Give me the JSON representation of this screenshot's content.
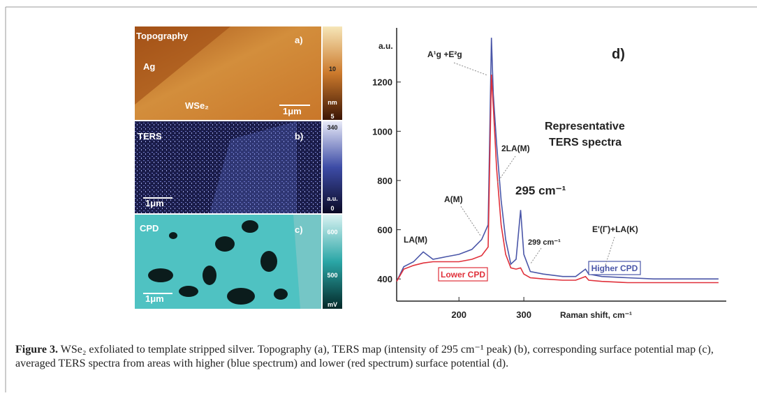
{
  "figure": {
    "panel_a": {
      "title": "Topography",
      "letter": "a)",
      "region_1": "Ag",
      "region_2": "WSe₂",
      "scale_bar": "1μm",
      "colorbar": [
        "10",
        "nm",
        "5"
      ]
    },
    "panel_b": {
      "title": "TERS",
      "letter": "b)",
      "scale_bar": "1μm",
      "colorbar": [
        "340",
        "a.u.",
        "0"
      ]
    },
    "panel_c": {
      "title": "CPD",
      "letter": "c)",
      "scale_bar": "1μm",
      "colorbar": [
        "600",
        "500",
        "mV"
      ]
    },
    "caption": {
      "label": "Figure 3.",
      "text": "WSe₂ exfoliated to template stripped silver. Topography (a), TERS map (intensity of 295 cm⁻¹ peak) (b), corresponding surface potential map (c), averaged TERS spectra from areas with higher (blue spectrum) and lower (red spectrum) surface potential (d)."
    }
  },
  "chart_data": {
    "type": "line",
    "title": "d)",
    "y_unit": "a.u.",
    "xlabel": "Raman shift, cm⁻¹",
    "annotations": [
      "A¹g +E²g",
      "2LA(M)",
      "A(M)",
      "295 cm⁻¹",
      "299 cm⁻¹",
      "LA(M)",
      "E'(Γ)+LA(K)",
      "Representative",
      "TERS spectra"
    ],
    "x": [
      104,
      115,
      130,
      145,
      160,
      180,
      200,
      220,
      235,
      245,
      250,
      253,
      258,
      265,
      272,
      280,
      288,
      295,
      300,
      310,
      330,
      360,
      380,
      395,
      400,
      420,
      460,
      500,
      600
    ],
    "series": [
      {
        "name": "Higher CPD",
        "color": "#4a56a8",
        "values": [
          390,
          450,
          470,
          510,
          480,
          490,
          500,
          520,
          560,
          620,
          1380,
          1150,
          950,
          720,
          560,
          460,
          480,
          680,
          500,
          430,
          420,
          410,
          410,
          440,
          420,
          410,
          405,
          400,
          400
        ]
      },
      {
        "name": "Lower CPD",
        "color": "#e0303a",
        "values": [
          390,
          440,
          455,
          465,
          470,
          470,
          470,
          480,
          495,
          530,
          1230,
          1100,
          850,
          620,
          500,
          445,
          440,
          445,
          420,
          405,
          400,
          395,
          395,
          410,
          395,
          390,
          385,
          385,
          385
        ]
      }
    ],
    "xlim": [
      104,
      612
    ],
    "ylim": [
      310,
      1420
    ],
    "xticks": [
      200,
      300
    ],
    "yticks": [
      400,
      600,
      800,
      1000,
      1200
    ]
  }
}
